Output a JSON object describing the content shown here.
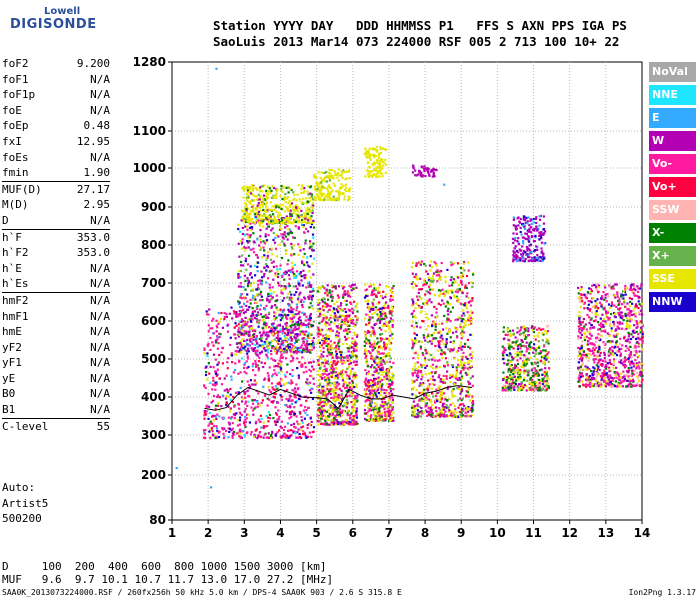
{
  "logo": {
    "line1": "Lowell",
    "line2": "DIGISONDE"
  },
  "header": {
    "line1": "Station YYYY DAY   DDD HHMMSS P1   FFS S AXN PPS IGA PS",
    "line2": "SaoLuis 2013 Mar14 073 224000 RSF 005 2 713 100 10+ 22"
  },
  "params": {
    "group1": [
      {
        "name": "foF2",
        "value": "9.200"
      },
      {
        "name": "foF1",
        "value": "N/A"
      },
      {
        "name": "foF1p",
        "value": "N/A"
      },
      {
        "name": "foE",
        "value": "N/A"
      },
      {
        "name": "foEp",
        "value": "0.48"
      },
      {
        "name": "fxI",
        "value": "12.95"
      },
      {
        "name": "foEs",
        "value": "N/A"
      },
      {
        "name": "fmin",
        "value": "1.90"
      }
    ],
    "group2": [
      {
        "name": "MUF(D)",
        "value": "27.17"
      },
      {
        "name": "M(D)",
        "value": "2.95"
      },
      {
        "name": "D",
        "value": "N/A"
      }
    ],
    "group3": [
      {
        "name": "h`F",
        "value": "353.0"
      },
      {
        "name": "h`F2",
        "value": "353.0"
      },
      {
        "name": "h`E",
        "value": "N/A"
      },
      {
        "name": "h`Es",
        "value": "N/A"
      }
    ],
    "group4": [
      {
        "name": "hmF2",
        "value": "N/A"
      },
      {
        "name": "hmF1",
        "value": "N/A"
      },
      {
        "name": "hmE",
        "value": "N/A"
      },
      {
        "name": "yF2",
        "value": "N/A"
      },
      {
        "name": "yF1",
        "value": "N/A"
      },
      {
        "name": "yE",
        "value": "N/A"
      },
      {
        "name": "B0",
        "value": "N/A"
      },
      {
        "name": "B1",
        "value": "N/A"
      }
    ],
    "group5": [
      {
        "name": "C-level",
        "value": "55"
      }
    ]
  },
  "auto": {
    "line1": "Auto:",
    "line2": "Artist5",
    "line3": "500200"
  },
  "legend": [
    {
      "label": "NoVal",
      "color": "#a8a8a8"
    },
    {
      "label": "NNE",
      "color": "#1ee6ff"
    },
    {
      "label": "E",
      "color": "#33aaff"
    },
    {
      "label": "W",
      "color": "#b400b4"
    },
    {
      "label": "Vo-",
      "color": "#ff1aa0"
    },
    {
      "label": "Vo+",
      "color": "#ff0040"
    },
    {
      "label": "SSW",
      "color": "#ffb3b3"
    },
    {
      "label": "X-",
      "color": "#008000"
    },
    {
      "label": "X+",
      "color": "#66b34d"
    },
    {
      "label": "SSE",
      "color": "#e6e600"
    },
    {
      "label": "NNW",
      "color": "#1a00cc"
    }
  ],
  "bottom": {
    "d_row": "D     100  200  400  600  800 1000 1500 3000 [km]",
    "muf_row": "MUF   9.6  9.7 10.1 10.7 11.7 13.0 17.0 27.2 [MHz]"
  },
  "footer": {
    "text": "SAA0K_2013073224000.RSF / 260fx256h 50 kHz 5.0 km / DPS-4 SAA0K 903 / 2.6 S 315.8 E",
    "version": "Ion2Png 1.3.17"
  },
  "chart_data": {
    "type": "scatter",
    "x_ticks": [
      1,
      2,
      3,
      4,
      5,
      6,
      7,
      8,
      9,
      10,
      11,
      12,
      13,
      14
    ],
    "y_ticks": [
      80,
      200,
      300,
      400,
      500,
      600,
      700,
      800,
      900,
      1000,
      1100,
      1280
    ],
    "xlim": [
      1,
      14
    ],
    "ylim": [
      80,
      1280
    ],
    "grid": true,
    "clusters": [
      {
        "x": [
          1.85,
          4.9
        ],
        "y": [
          295,
          640
        ],
        "weights": {
          "Vo-": 0.45,
          "Vo+": 0.12,
          "W": 0.18,
          "NNW": 0.08,
          "SSE": 0.06,
          "X-": 0.04,
          "NNE": 0.03,
          "E": 0.04
        }
      },
      {
        "x": [
          2.8,
          4.9
        ],
        "y": [
          520,
          880
        ],
        "weights": {
          "W": 0.3,
          "Vo-": 0.2,
          "SSE": 0.15,
          "NNW": 0.1,
          "X-": 0.1,
          "NNE": 0.05,
          "E": 0.05,
          "X+": 0.05
        }
      },
      {
        "x": [
          2.9,
          4.9
        ],
        "y": [
          860,
          960
        ],
        "weights": {
          "SSE": 0.75,
          "X-": 0.1,
          "W": 0.1,
          "X+": 0.05
        }
      },
      {
        "x": [
          4.9,
          5.9
        ],
        "y": [
          920,
          1000
        ],
        "weights": {
          "SSE": 0.9,
          "X+": 0.1
        }
      },
      {
        "x": [
          6.3,
          6.9
        ],
        "y": [
          980,
          1060
        ],
        "weights": {
          "SSE": 1.0
        }
      },
      {
        "x": [
          5.0,
          6.1
        ],
        "y": [
          330,
          700
        ],
        "weights": {
          "SSE": 0.3,
          "Vo-": 0.25,
          "W": 0.15,
          "Vo+": 0.1,
          "X-": 0.1,
          "NNW": 0.05,
          "X+": 0.05
        }
      },
      {
        "x": [
          6.3,
          7.1
        ],
        "y": [
          340,
          700
        ],
        "weights": {
          "SSE": 0.3,
          "Vo-": 0.25,
          "W": 0.15,
          "Vo+": 0.1,
          "X-": 0.1,
          "NNW": 0.05,
          "X+": 0.05
        }
      },
      {
        "x": [
          7.6,
          9.3
        ],
        "y": [
          350,
          760
        ],
        "weights": {
          "SSE": 0.35,
          "Vo-": 0.2,
          "W": 0.15,
          "Vo+": 0.1,
          "X-": 0.1,
          "NNW": 0.05,
          "X+": 0.05
        }
      },
      {
        "x": [
          10.1,
          11.4
        ],
        "y": [
          420,
          590
        ],
        "weights": {
          "SSE": 0.2,
          "Vo-": 0.15,
          "X-": 0.25,
          "X+": 0.15,
          "W": 0.1,
          "NNW": 0.05,
          "Vo+": 0.05,
          "SSW": 0.05
        }
      },
      {
        "x": [
          10.4,
          11.3
        ],
        "y": [
          760,
          880
        ],
        "weights": {
          "W": 0.7,
          "E": 0.2,
          "NNW": 0.1
        }
      },
      {
        "x": [
          12.2,
          14.0
        ],
        "y": [
          430,
          700
        ],
        "weights": {
          "Vo-": 0.3,
          "W": 0.2,
          "SSE": 0.15,
          "X-": 0.1,
          "NNW": 0.1,
          "SSW": 0.1,
          "Vo+": 0.05
        }
      },
      {
        "x": [
          7.6,
          8.3
        ],
        "y": [
          980,
          1010
        ],
        "weights": {
          "W": 1.0
        }
      }
    ],
    "trace": {
      "color": "#000000",
      "x": [
        1.9,
        2.2,
        2.5,
        2.8,
        3.1,
        3.4,
        3.7,
        4.0,
        4.3,
        4.6,
        5.0,
        5.3,
        5.6,
        5.9,
        6.2,
        6.5,
        6.8,
        7.1,
        7.4,
        7.7,
        8.0,
        8.3,
        8.6,
        8.9,
        9.3
      ],
      "y": [
        370,
        365,
        372,
        405,
        425,
        415,
        405,
        420,
        410,
        400,
        398,
        395,
        370,
        420,
        405,
        395,
        395,
        405,
        400,
        395,
        410,
        415,
        425,
        430,
        425
      ]
    }
  }
}
